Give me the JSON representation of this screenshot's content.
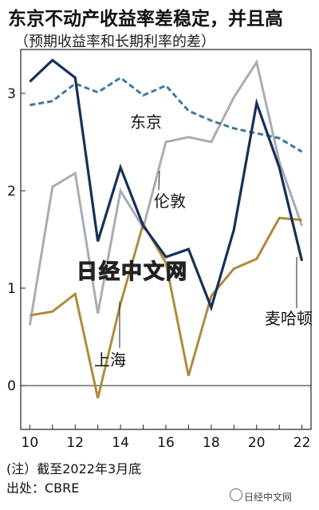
{
  "title": "东京不动产收益率差稳定，并且高",
  "subtitle": "（预期收益率和长期利率的差）",
  "note": "(注）截至2022年3月底",
  "source": "出处：CBRE",
  "watermark": "日经中文网",
  "brand": "日经中文网",
  "chart_data": {
    "type": "line",
    "x": [
      10,
      11,
      12,
      13,
      14,
      15,
      16,
      17,
      18,
      19,
      20,
      21,
      22
    ],
    "x_tick_labels": [
      "10",
      "12",
      "14",
      "16",
      "18",
      "20",
      "22"
    ],
    "y_tick_labels": [
      "0",
      "1",
      "2",
      "3"
    ],
    "ylim": [
      -0.45,
      3.45
    ],
    "xlim": [
      9.6,
      22.4
    ],
    "series": [
      {
        "name": "东京",
        "color": "#3f7a9a",
        "style": "dashed",
        "values": [
          2.88,
          2.92,
          3.1,
          3.01,
          3.16,
          2.98,
          3.08,
          2.82,
          2.72,
          2.64,
          2.59,
          2.54,
          2.4
        ]
      },
      {
        "name": "伦敦",
        "color": "#a8adb4",
        "style": "solid",
        "values": [
          0.62,
          2.04,
          2.18,
          0.74,
          2.0,
          1.62,
          2.5,
          2.55,
          2.5,
          2.96,
          3.32,
          2.3,
          1.64
        ]
      },
      {
        "name": "麦哈顿",
        "color": "#14315a",
        "style": "solid",
        "values": [
          3.12,
          3.34,
          3.16,
          1.48,
          2.24,
          1.64,
          1.32,
          1.4,
          0.8,
          1.6,
          2.9,
          2.24,
          1.28
        ]
      },
      {
        "name": "上海",
        "color": "#b08a3c",
        "style": "solid",
        "values": [
          0.72,
          0.76,
          0.94,
          -0.13,
          0.84,
          1.66,
          1.26,
          0.1,
          0.92,
          1.2,
          1.3,
          1.72,
          1.7
        ]
      }
    ],
    "grid": false,
    "legend": "inline labels"
  }
}
